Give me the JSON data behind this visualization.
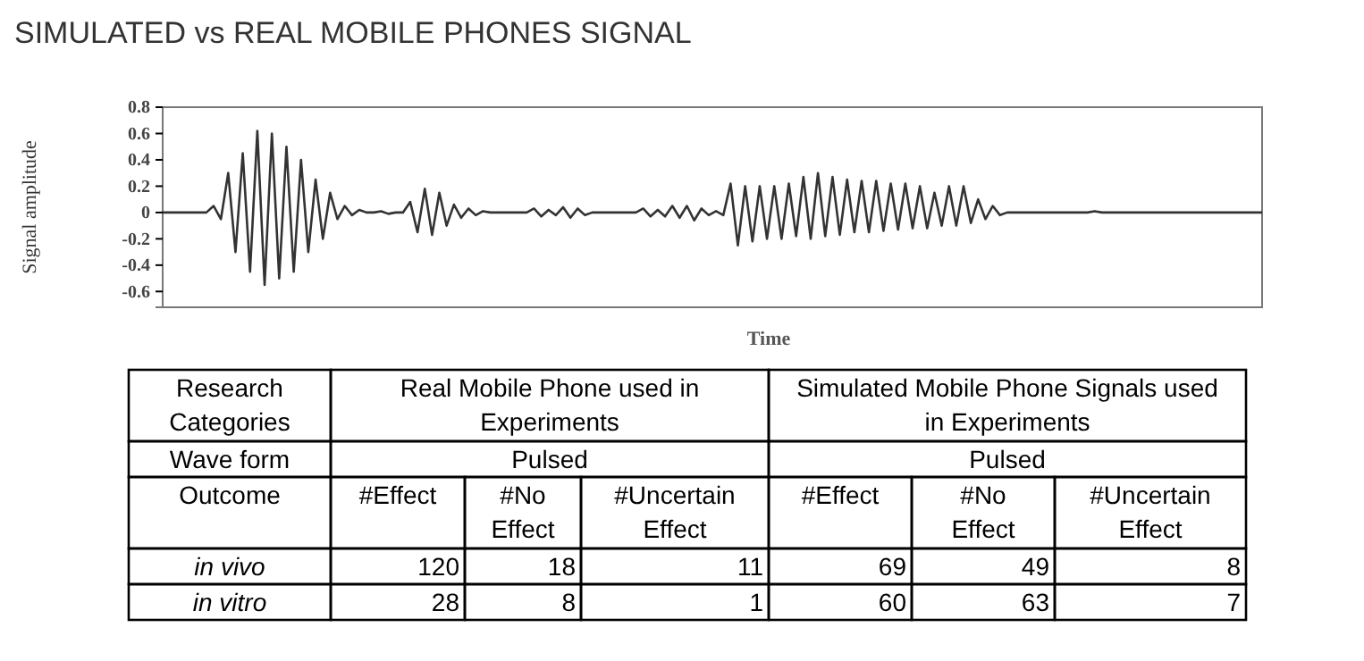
{
  "chart_data": [
    {
      "type": "line",
      "title": "SIMULATED vs REAL MOBILE PHONES SIGNAL",
      "xlabel": "Time",
      "ylabel": "Signal amplitude",
      "color": "#333333",
      "categories": [
        null,
        null,
        null,
        null,
        null,
        null,
        null,
        null,
        null,
        null,
        null,
        null,
        null,
        null,
        null,
        null,
        null,
        null,
        null,
        null,
        null,
        null,
        null,
        null,
        null,
        null,
        null,
        null,
        null,
        null,
        null,
        null,
        null,
        null,
        null,
        null,
        null,
        null,
        null,
        null,
        null,
        null,
        null,
        null,
        null,
        null,
        null,
        null,
        null,
        null,
        null,
        null,
        null,
        null,
        null,
        null,
        null,
        null,
        null,
        null,
        null,
        null,
        null,
        null,
        null,
        null,
        null,
        null,
        null,
        null,
        null,
        null,
        null,
        null,
        null,
        null,
        null,
        null,
        null,
        null,
        null,
        null,
        null,
        null,
        null,
        null,
        null,
        null,
        null,
        null,
        null,
        null,
        null,
        null,
        null,
        null,
        null,
        null,
        null,
        null,
        null,
        null,
        null,
        null,
        null,
        null,
        null,
        null,
        null,
        null,
        null,
        null,
        null,
        null,
        null,
        null,
        null,
        null,
        null,
        null,
        null,
        null,
        null,
        null,
        null,
        null,
        null,
        null,
        null,
        null,
        null,
        null,
        null,
        null,
        null,
        null,
        null,
        null,
        null,
        null,
        null,
        null,
        null,
        null,
        null,
        null,
        null,
        null,
        null,
        null,
        null,
        null
      ],
      "values": [
        0,
        0,
        0,
        0,
        0,
        0,
        0,
        0.05,
        -0.05,
        0.3,
        -0.3,
        0.45,
        -0.45,
        0.62,
        -0.55,
        0.6,
        -0.5,
        0.5,
        -0.45,
        0.4,
        -0.3,
        0.25,
        -0.2,
        0.15,
        -0.05,
        0.05,
        -0.02,
        0.02,
        0,
        0,
        0.01,
        -0.01,
        0,
        0,
        0.08,
        -0.15,
        0.18,
        -0.17,
        0.15,
        -0.1,
        0.06,
        -0.04,
        0.03,
        -0.02,
        0.01,
        0,
        0,
        0,
        0,
        0,
        0,
        0.03,
        -0.03,
        0.02,
        -0.02,
        0.04,
        -0.04,
        0.03,
        -0.02,
        0,
        0,
        0,
        0,
        0,
        0,
        0,
        0.03,
        -0.03,
        0.02,
        -0.03,
        0.05,
        -0.04,
        0.05,
        -0.06,
        0.03,
        -0.02,
        0.01,
        -0.02,
        0.22,
        -0.25,
        0.2,
        -0.22,
        0.2,
        -0.2,
        0.2,
        -0.2,
        0.22,
        -0.18,
        0.27,
        -0.2,
        0.3,
        -0.18,
        0.27,
        -0.17,
        0.25,
        -0.15,
        0.24,
        -0.15,
        0.24,
        -0.14,
        0.22,
        -0.13,
        0.22,
        -0.12,
        0.2,
        -0.12,
        0.15,
        -0.1,
        0.2,
        -0.1,
        0.2,
        -0.08,
        0.1,
        -0.05,
        0.05,
        -0.02,
        0,
        0,
        0,
        0,
        0,
        0,
        0,
        0,
        0,
        0,
        0,
        0,
        0.01,
        0,
        0,
        0,
        0,
        0,
        0,
        0,
        0,
        0,
        0,
        0,
        0,
        0,
        0,
        0,
        0,
        0,
        0,
        0,
        0,
        0,
        0,
        0
      ],
      "ylim": [
        -0.72,
        0.8
      ],
      "yticks": [
        0.8,
        0.6,
        0.4,
        0.2,
        0,
        -0.2,
        -0.4,
        -0.6
      ],
      "tick_labels": "y"
    },
    {
      "type": "other",
      "annotations": [
        "Research Categories",
        "Real Mobile Phone used in Experiments",
        "Simulated Mobile Phone Signals used in Experiments",
        "Wave form",
        "Pulsed",
        "Pulsed",
        "Outcome",
        "#Effect",
        "#No Effect",
        "#Uncertain Effect",
        "#Effect",
        "#No Effect",
        "#Uncertain Effect",
        "in vivo",
        "120",
        "18",
        "11",
        "69",
        "49",
        "8",
        "in vitro",
        "28",
        "8",
        "1",
        "60",
        "63",
        "7"
      ]
    }
  ]
}
